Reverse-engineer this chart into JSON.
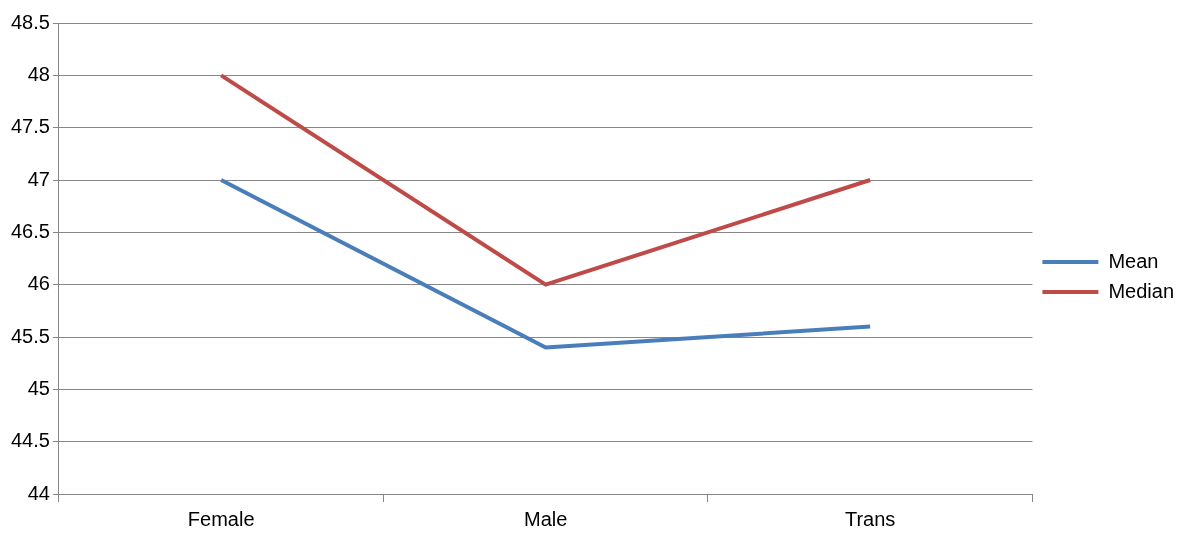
{
  "chart_data": {
    "type": "line",
    "categories": [
      "Female",
      "Male",
      "Trans"
    ],
    "series": [
      {
        "name": "Mean",
        "color": "#4a7ebb",
        "values": [
          47,
          45.4,
          45.6
        ]
      },
      {
        "name": "Median",
        "color": "#be4b48",
        "values": [
          48,
          46,
          47
        ]
      }
    ],
    "ylim": [
      44,
      48.5
    ],
    "yticks": [
      44,
      44.5,
      45,
      45.5,
      46,
      46.5,
      47,
      47.5,
      48,
      48.5
    ],
    "grid": "y",
    "legend": "right",
    "marker": "none"
  }
}
